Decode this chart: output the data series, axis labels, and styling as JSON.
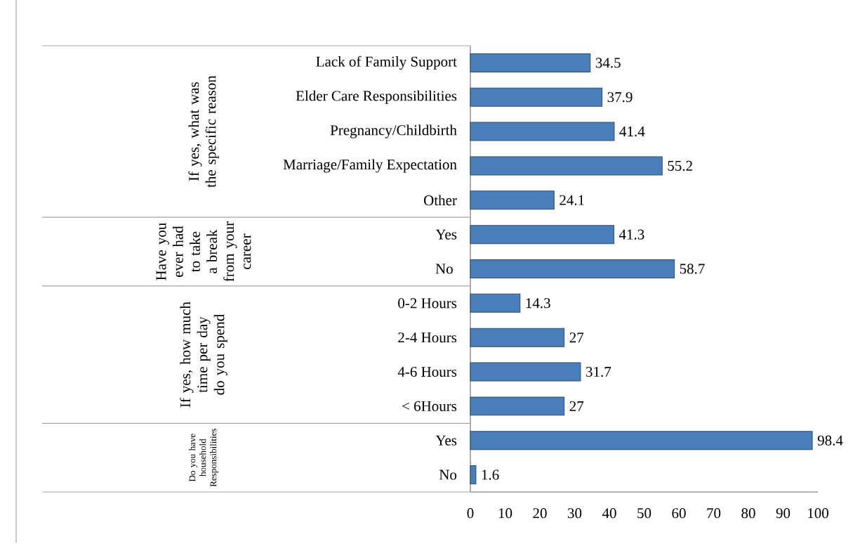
{
  "chart_data": {
    "type": "bar",
    "orientation": "horizontal",
    "categories": [
      "Lack of Family Support",
      "Elder Care Responsibilities",
      "Pregnancy/Childbirth",
      "Marriage/Family Expectation",
      "Other",
      "Yes",
      "No ",
      "0-2 Hours",
      "2-4 Hours",
      "4-6 Hours",
      "< 6Hours",
      "Yes",
      "No"
    ],
    "values": [
      34.5,
      37.9,
      41.4,
      55.2,
      24.1,
      41.3,
      58.7,
      14.3,
      27,
      31.7,
      27,
      98.4,
      1.6
    ],
    "color": "#4a7ebb",
    "data_labels": true,
    "xlim": [
      0,
      100
    ],
    "xticks": [
      0,
      10,
      20,
      30,
      40,
      50,
      60,
      70,
      80,
      90,
      100
    ],
    "annotations": [
      "If yes, what was the specific reason",
      "Have you ever had to take a break from your career",
      "If yes, how much time per day do you spend",
      "Do you have household Responsibilities"
    ]
  }
}
